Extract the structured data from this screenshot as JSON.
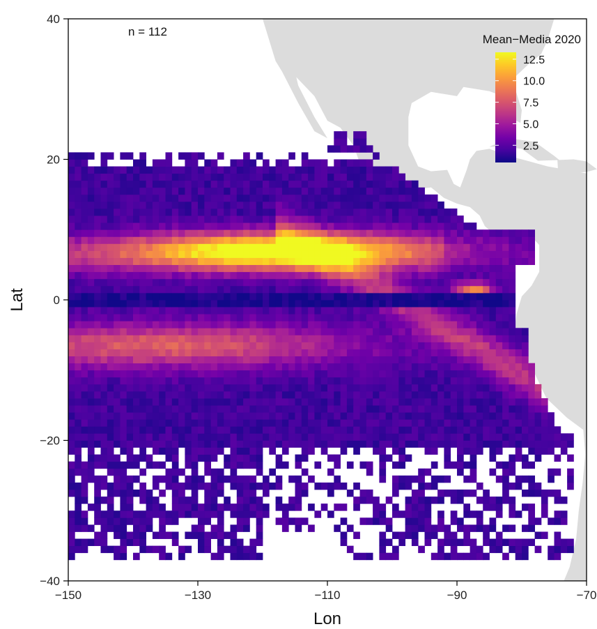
{
  "chart_data": {
    "type": "heatmap",
    "annotation": "n = 112",
    "xlabel": "Lon",
    "ylabel": "Lat",
    "xlim": [
      -150,
      -70
    ],
    "ylim": [
      -40,
      40
    ],
    "x_ticks": [
      -150,
      -130,
      -110,
      -90,
      -70
    ],
    "x_tick_labels": [
      "−150",
      "−130",
      "−110",
      "−90",
      "−70"
    ],
    "y_ticks": [
      40,
      20,
      0,
      -20,
      -40
    ],
    "y_tick_labels": [
      "40",
      "20",
      "0",
      "−20",
      "−40"
    ],
    "legend": {
      "title": "Mean−Media 2020",
      "placement": "top-right",
      "range": [
        0.5,
        13.3
      ],
      "ticks": [
        12.5,
        10.0,
        7.5,
        5.0,
        2.5
      ],
      "tick_labels": [
        "12.5",
        "10.0",
        "7.5",
        "5.0",
        "2.5"
      ]
    },
    "colormap": [
      "#0d0887",
      "#46039f",
      "#7201a8",
      "#9c179e",
      "#bd3786",
      "#d8576b",
      "#ed7953",
      "#fb9f3a",
      "#fdca26",
      "#f0f921"
    ],
    "land_color": "#dcdcdc",
    "grid": false,
    "cell_size_deg": 1,
    "value_bands": [
      {
        "feature": "northern equatorial band",
        "lat_center": 7,
        "lon_range": [
          -145,
          -95
        ],
        "peak_value": 12.5
      },
      {
        "feature": "southern equatorial band",
        "lat_center": -7,
        "lon_range": [
          -150,
          -100
        ],
        "peak_value": 8
      },
      {
        "feature": "equator minimum",
        "lat_center": 0,
        "value": 1
      },
      {
        "feature": "near Galapagos",
        "lat_center": 1.5,
        "lon_range": [
          -90,
          -85
        ],
        "peak_value": 10
      },
      {
        "feature": "Peru coast",
        "lat_center": -12,
        "lon_range": [
          -85,
          -78
        ],
        "peak_value": 6
      }
    ]
  }
}
